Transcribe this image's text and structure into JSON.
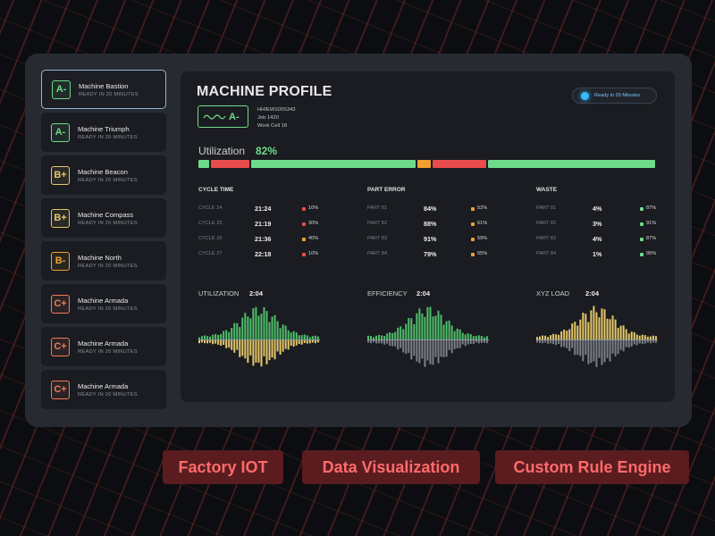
{
  "colors": {
    "green": "#6edb8a",
    "red": "#e84c4c",
    "orange": "#f0a030",
    "yellow": "#e6c86a",
    "gray": "#7b7f87",
    "accent_blue": "#38b8ff",
    "tag_bg": "#5a1c1f",
    "tag_text": "#ff6b6b"
  },
  "machines": [
    {
      "grade": "A-",
      "name": "Machine Bastion",
      "status": "READY IN 20 MINUTES",
      "color": "#6edb8a",
      "active": true
    },
    {
      "grade": "A-",
      "name": "Machine Triumph",
      "status": "READY IN 20 MINUTES",
      "color": "#6edb8a",
      "active": false
    },
    {
      "grade": "B+",
      "name": "Machine Beacon",
      "status": "READY IN 20 MINUTES",
      "color": "#e6c86a",
      "active": false
    },
    {
      "grade": "B+",
      "name": "Machine Compass",
      "status": "READY IN 20 MINUTES",
      "color": "#e6c86a",
      "active": false
    },
    {
      "grade": "B-",
      "name": "Machine North",
      "status": "READY IN 20 MINUTES",
      "color": "#f0a030",
      "active": false
    },
    {
      "grade": "C+",
      "name": "Machine Armada",
      "status": "READY IN 20 MINUTES",
      "color": "#f27b5a",
      "active": false
    },
    {
      "grade": "C+",
      "name": "Machine Armada",
      "status": "READY IN 20 MINUTES",
      "color": "#f27b5a",
      "active": false
    },
    {
      "grade": "C+",
      "name": "Machine Armada",
      "status": "READY IN 20 MINUTES",
      "color": "#f27b5a",
      "active": false
    }
  ],
  "profile": {
    "title": "MACHINE PROFILE",
    "ready_badge": "Ready in 20 Minutes",
    "grade": "A-",
    "grade_icon": "waveform-icon",
    "serial": "HHIEW100S343",
    "job": "Job 1420",
    "work_cell": "Work Cell 18"
  },
  "utilization": {
    "label": "Utilization",
    "value": "82%",
    "segments": [
      {
        "fraction": 0.027,
        "status": "green"
      },
      {
        "fraction": 0.088,
        "status": "red"
      },
      {
        "fraction": 0.362,
        "status": "green"
      },
      {
        "fraction": 0.033,
        "status": "orange"
      },
      {
        "fraction": 0.122,
        "status": "red"
      },
      {
        "fraction": 0.368,
        "status": "green"
      }
    ]
  },
  "stats": [
    {
      "title": "CYCLE TIME",
      "rows": [
        {
          "label": "CYCLE 24",
          "value": "21:24",
          "pct": "10%",
          "status": "red"
        },
        {
          "label": "CYCLE 25",
          "value": "21:19",
          "pct": "30%",
          "status": "red"
        },
        {
          "label": "CYCLE 26",
          "value": "21:36",
          "pct": "40%",
          "status": "orange"
        },
        {
          "label": "CYCLE 27",
          "value": "22:18",
          "pct": "10%",
          "status": "red"
        }
      ]
    },
    {
      "title": "PART ERROR",
      "rows": [
        {
          "label": "PART 81",
          "value": "84%",
          "pct": "52%",
          "status": "orange"
        },
        {
          "label": "PART 82",
          "value": "88%",
          "pct": "61%",
          "status": "orange"
        },
        {
          "label": "PART 83",
          "value": "91%",
          "pct": "59%",
          "status": "orange"
        },
        {
          "label": "PART 84",
          "value": "79%",
          "pct": "55%",
          "status": "orange"
        }
      ]
    },
    {
      "title": "WASTE",
      "rows": [
        {
          "label": "PART 81",
          "value": "4%",
          "pct": "87%",
          "status": "green"
        },
        {
          "label": "PART 82",
          "value": "3%",
          "pct": "91%",
          "status": "green"
        },
        {
          "label": "PART 83",
          "value": "4%",
          "pct": "87%",
          "status": "green"
        },
        {
          "label": "PART 84",
          "value": "1%",
          "pct": "95%",
          "status": "green"
        }
      ]
    }
  ],
  "charts": [
    {
      "label": "UTILIZATION",
      "value": "2:04",
      "up_color": "#4fbf6a",
      "down_color": "#e6c86a"
    },
    {
      "label": "EFFICIENCY",
      "value": "2:04",
      "up_color": "#4fbf6a",
      "down_color": "#7b7f87"
    },
    {
      "label": "XYZ LOAD",
      "value": "2:04",
      "up_color": "#e6c86a",
      "down_color": "#7b7f87"
    }
  ],
  "tags": [
    "Factory IOT",
    "Data Visualization",
    "Custom Rule Engine"
  ]
}
